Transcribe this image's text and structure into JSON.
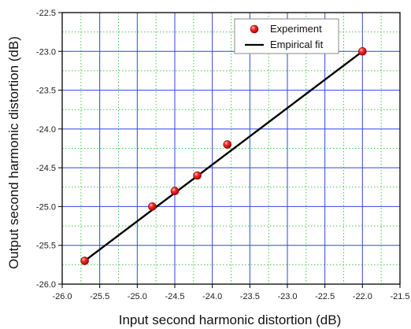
{
  "chart_data": {
    "type": "scatter",
    "xlabel": "Input second harmonic distortion (dB)",
    "ylabel": "Output second harmonic distortion (dB)",
    "xlim": [
      -26.0,
      -21.5
    ],
    "ylim": [
      -26.0,
      -22.5
    ],
    "x_ticks": [
      "-26.0",
      "-25.5",
      "-25.0",
      "-24.5",
      "-24.0",
      "-23.5",
      "-23.0",
      "-22.5",
      "-22.0",
      "-21.5"
    ],
    "y_ticks": [
      "-26.0",
      "-25.5",
      "-25.0",
      "-24.5",
      "-24.0",
      "-23.5",
      "-23.0",
      "-22.5"
    ],
    "grid": "major solid blue, minor dotted green",
    "legend_position": "top-right",
    "series": [
      {
        "name": "Experiment",
        "kind": "scatter",
        "color": "#e01010",
        "points": [
          {
            "x": -25.7,
            "y": -25.7
          },
          {
            "x": -24.8,
            "y": -25.0
          },
          {
            "x": -24.5,
            "y": -24.8
          },
          {
            "x": -24.2,
            "y": -24.6
          },
          {
            "x": -23.8,
            "y": -24.2
          },
          {
            "x": -22.0,
            "y": -23.0
          }
        ]
      },
      {
        "name": "Empirical fit",
        "kind": "line",
        "color": "#000000",
        "points": [
          {
            "x": -25.7,
            "y": -25.7
          },
          {
            "x": -22.0,
            "y": -23.0
          }
        ]
      }
    ]
  }
}
